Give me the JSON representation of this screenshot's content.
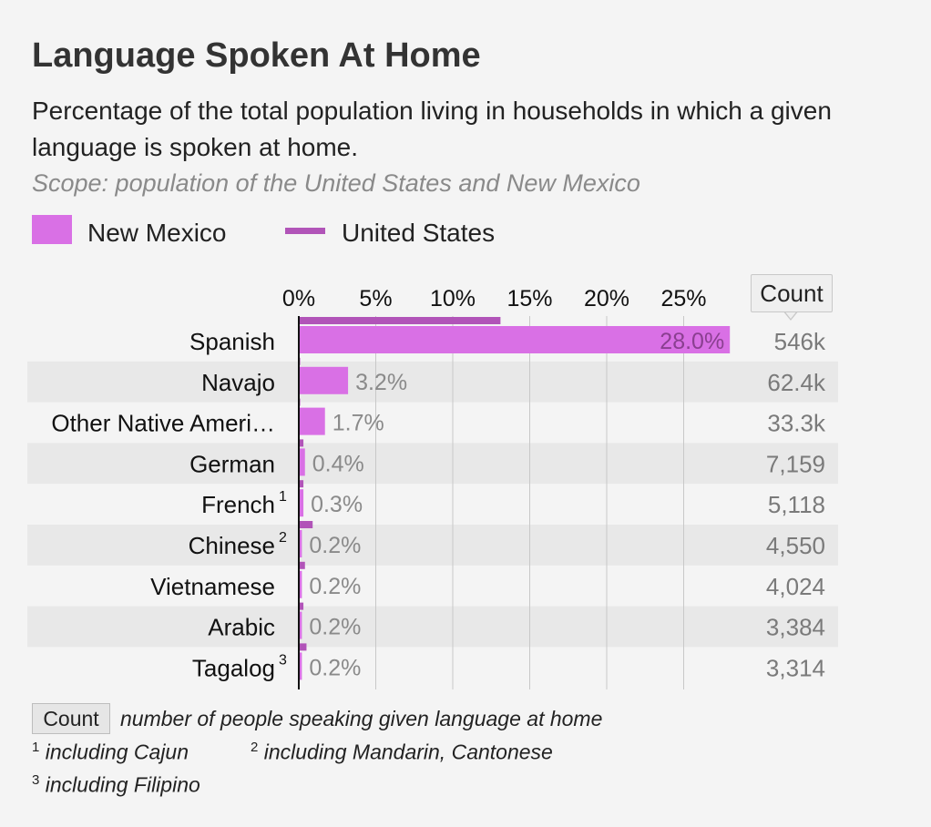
{
  "header": {
    "title": "Language Spoken At Home",
    "subtitle": "Percentage of the total population living in households in which a given language is spoken at home.",
    "scope": "Scope: population of the United States and New Mexico"
  },
  "legend": {
    "primary": "New Mexico",
    "secondary": "United States"
  },
  "count_header": "Count",
  "colors": {
    "new_mexico": "#d970e5",
    "united_states": "#b154b8",
    "row_band": "#e8e8e8",
    "grid": "#c8c8c8",
    "value_label": "#8a8a8a",
    "axis": "#111111"
  },
  "chart_data": {
    "type": "bar",
    "orientation": "horizontal",
    "xlim": [
      0,
      28
    ],
    "ticks": [
      "0%",
      "5%",
      "10%",
      "15%",
      "20%",
      "25%"
    ],
    "tick_values": [
      0,
      5,
      10,
      15,
      20,
      25
    ],
    "grid": true,
    "categories": [
      "Spanish",
      "Navajo",
      "Other Native Ameri…",
      "German",
      "French",
      "Chinese",
      "Vietnamese",
      "Arabic",
      "Tagalog"
    ],
    "footnote_marks": [
      "",
      "",
      "",
      "",
      "1",
      "2",
      "",
      "",
      "3"
    ],
    "series": [
      {
        "name": "New Mexico",
        "values": [
          28.0,
          3.2,
          1.7,
          0.4,
          0.3,
          0.2,
          0.2,
          0.2,
          0.2
        ],
        "labels": [
          "28.0%",
          "3.2%",
          "1.7%",
          "0.4%",
          "0.3%",
          "0.2%",
          "0.2%",
          "0.2%",
          "0.2%"
        ]
      },
      {
        "name": "United States",
        "values": [
          13.1,
          0.05,
          0.05,
          0.3,
          0.3,
          0.9,
          0.4,
          0.3,
          0.5
        ]
      }
    ],
    "counts": [
      "546k",
      "62.4k",
      "33.3k",
      "7,159",
      "5,118",
      "4,550",
      "4,024",
      "3,384",
      "3,314"
    ]
  },
  "footer": {
    "count_key": "Count",
    "count_desc": "number of people speaking given language at home",
    "notes": [
      {
        "mark": "1",
        "text": "including Cajun"
      },
      {
        "mark": "2",
        "text": "including Mandarin, Cantonese"
      },
      {
        "mark": "3",
        "text": "including Filipino"
      }
    ]
  }
}
